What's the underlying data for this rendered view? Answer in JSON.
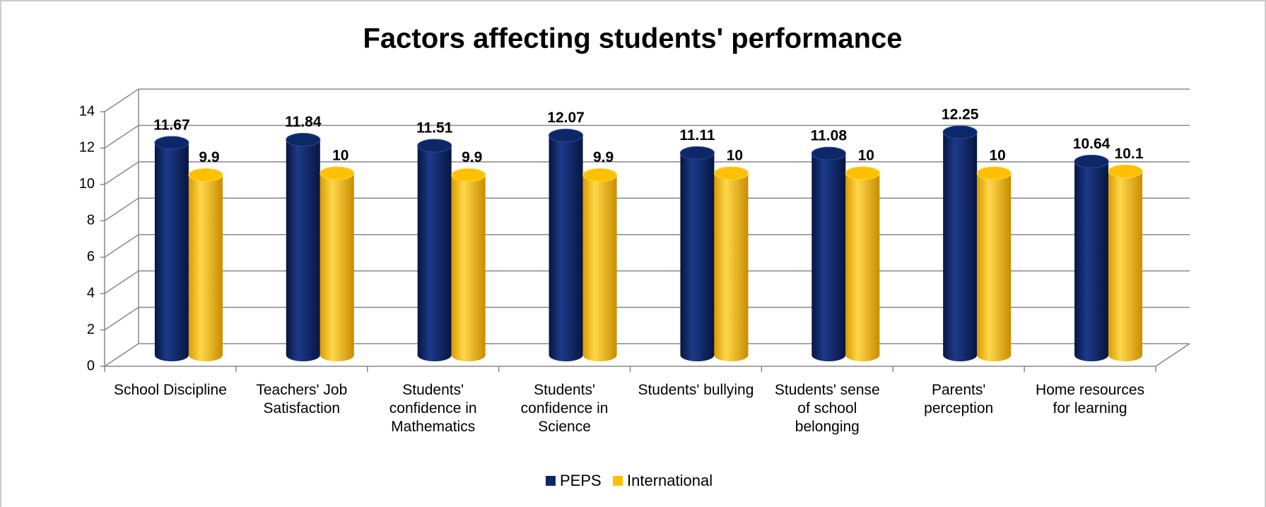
{
  "chart_data": {
    "type": "bar3d",
    "title": "Factors affecting students' performance",
    "categories": [
      "School Discipline",
      "Teachers' Job Satisfaction",
      "Students' confidence in Mathematics",
      "Students' confidence in Science",
      "Students' bullying",
      "Students' sense of school belonging",
      "Parents' perception",
      "Home resources for learning"
    ],
    "series": [
      {
        "name": "PEPS",
        "color": "#0d2868",
        "values": [
          11.67,
          11.84,
          11.51,
          12.07,
          11.11,
          11.08,
          12.25,
          10.64
        ]
      },
      {
        "name": "International",
        "color": "#ffc000",
        "values": [
          9.9,
          10,
          9.9,
          9.9,
          10,
          10,
          10,
          10.1
        ]
      }
    ],
    "ylim": [
      0,
      14
    ],
    "yticks": [
      0,
      2,
      4,
      6,
      8,
      10,
      12,
      14
    ],
    "grid": true,
    "legend": "bottom"
  }
}
